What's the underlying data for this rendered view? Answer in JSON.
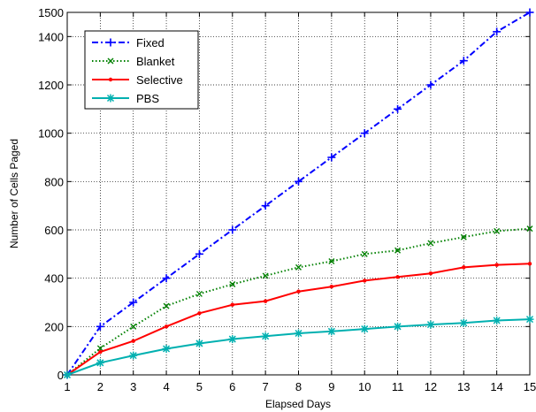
{
  "chart_data": {
    "type": "line",
    "title": "",
    "xlabel": "Elapsed Days",
    "ylabel": "Number of Cells Paged",
    "xlim": [
      1,
      15
    ],
    "ylim": [
      0,
      1500
    ],
    "x_ticks": [
      1,
      2,
      3,
      4,
      5,
      6,
      7,
      8,
      9,
      10,
      11,
      12,
      13,
      14,
      15
    ],
    "y_ticks": [
      0,
      200,
      400,
      600,
      800,
      1000,
      1200,
      1400,
      1500
    ],
    "grid": true,
    "legend_position": "top-left",
    "x": [
      1,
      2,
      3,
      4,
      5,
      6,
      7,
      8,
      9,
      10,
      11,
      12,
      13,
      14,
      15
    ],
    "series": [
      {
        "name": "Fixed",
        "color": "#0000ff",
        "line_style": "dash-dot",
        "marker": "plus",
        "values": [
          0,
          200,
          300,
          400,
          500,
          600,
          700,
          800,
          900,
          1000,
          1100,
          1200,
          1300,
          1420,
          1500
        ]
      },
      {
        "name": "Blanket",
        "color": "#008000",
        "line_style": "dotted",
        "marker": "x",
        "values": [
          0,
          110,
          200,
          285,
          335,
          375,
          410,
          445,
          470,
          500,
          515,
          545,
          570,
          595,
          605
        ]
      },
      {
        "name": "Selective",
        "color": "#ff0000",
        "line_style": "solid",
        "marker": "dot",
        "values": [
          0,
          95,
          140,
          200,
          255,
          290,
          305,
          345,
          365,
          390,
          405,
          420,
          445,
          455,
          460
        ]
      },
      {
        "name": "PBS",
        "color": "#00b0b0",
        "line_style": "solid",
        "marker": "star",
        "values": [
          0,
          50,
          80,
          108,
          130,
          148,
          160,
          172,
          180,
          190,
          200,
          208,
          215,
          225,
          230
        ]
      }
    ]
  }
}
